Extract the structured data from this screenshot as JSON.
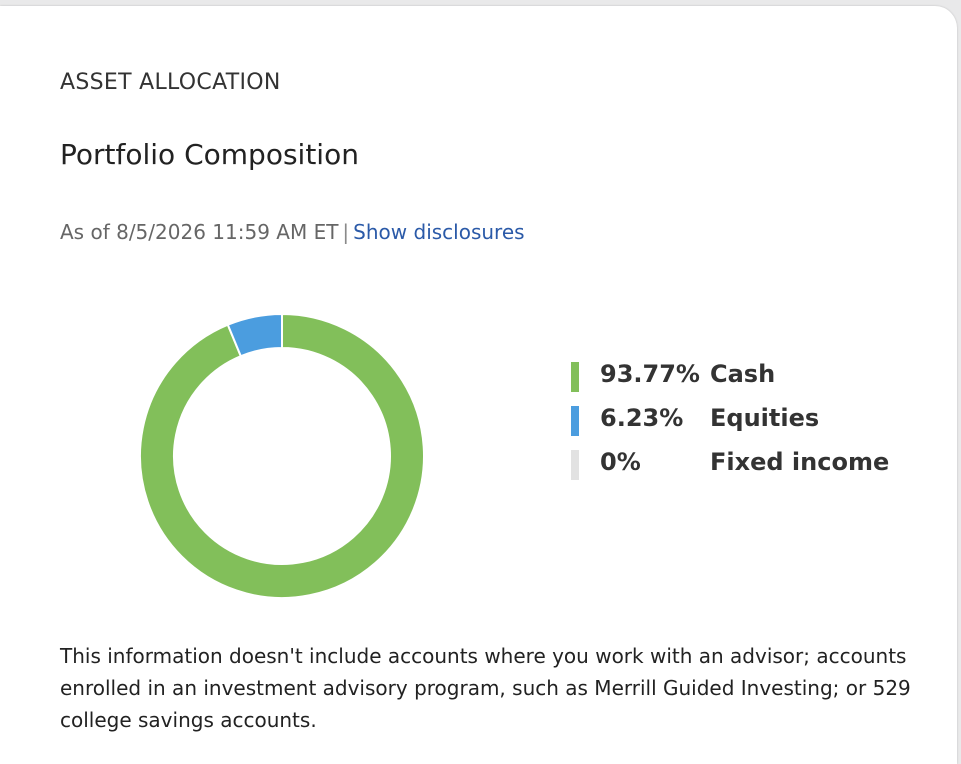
{
  "header": {
    "section_label": "ASSET ALLOCATION",
    "title": "Portfolio Composition",
    "as_of": "As of 8/5/2026 11:59 AM ET",
    "separator": "|",
    "disclosures_link": "Show disclosures"
  },
  "chart_data": {
    "type": "pie",
    "style": "donut",
    "categories": [
      "Cash",
      "Equities",
      "Fixed income"
    ],
    "values": [
      93.77,
      6.23,
      0
    ],
    "labels": [
      "93.77%",
      "6.23%",
      "0%"
    ],
    "colors": [
      "#82bf5a",
      "#4b9ddf",
      "#e2e2e2"
    ],
    "legend_position": "right"
  },
  "footer": {
    "disclaimer": "This information doesn't include accounts where you work with an advisor; accounts enrolled in an investment advisory program, such as Merrill Guided Investing; or 529 college savings accounts."
  }
}
